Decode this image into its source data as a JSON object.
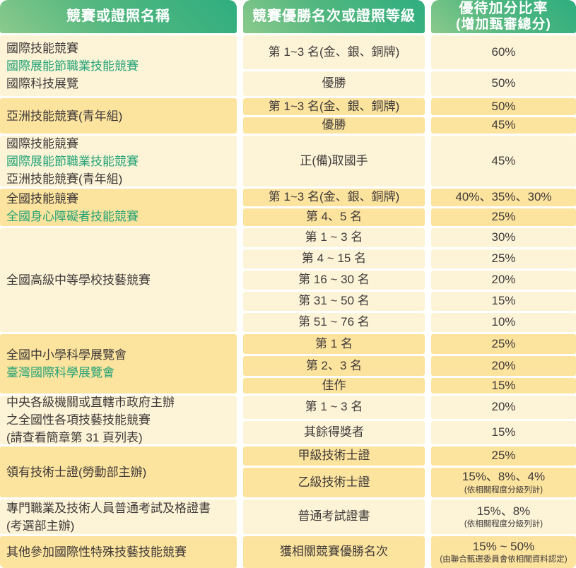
{
  "colors": {
    "header_gradient_dark": "#2fae7f",
    "header_gradient_light": "#8bca8c",
    "row_light": "#fdf4d8",
    "row_dark": "#fce39e",
    "green_text": "#23a377",
    "body_text": "#3f3a39",
    "header_text": "#ffffff"
  },
  "table": {
    "header": {
      "col1": "競賽或證照名稱",
      "col2": "競賽優勝名次或證照等級",
      "col3_line1": "優待加分比率",
      "col3_line2": "(增加甄審總分)"
    },
    "groups": [
      {
        "shade": "light",
        "lines": [
          "國際技能競賽",
          "國際展能節職業技能競賽",
          "國際科技展覽"
        ],
        "green_line_index": 1,
        "rows": [
          {
            "rank": "第 1~3 名(金、銀、銅牌)",
            "rate": "60%"
          },
          {
            "rank": "優勝",
            "rate": "50%"
          }
        ]
      },
      {
        "shade": "dark",
        "lines": [
          "亞洲技能競賽(青年組)"
        ],
        "green_line_index": -1,
        "rows": [
          {
            "rank": "第 1~3 名(金、銀、銅牌)",
            "rate": "50%"
          },
          {
            "rank": "優勝",
            "rate": "45%"
          }
        ]
      },
      {
        "shade": "light",
        "lines": [
          "國際技能競賽",
          "國際展能節職業技能競賽",
          "亞洲技能競賽(青年組)"
        ],
        "green_line_index": 1,
        "rows": [
          {
            "rank": "正(備)取國手",
            "rate": "45%"
          }
        ]
      },
      {
        "shade": "dark",
        "lines": [
          "全國技能競賽",
          "全國身心障礙者技能競賽"
        ],
        "green_line_index": 1,
        "rows": [
          {
            "rank": "第 1~3 名(金、銀、銅牌)",
            "rate": "40%、35%、30%"
          },
          {
            "rank": "第 4、5 名",
            "rate": "25%"
          }
        ]
      },
      {
        "shade": "light",
        "lines": [
          "全國高級中等學校技藝競賽"
        ],
        "green_line_index": -1,
        "rows": [
          {
            "rank": "第 1 ~ 3 名",
            "rate": "30%"
          },
          {
            "rank": "第 4 ~ 15 名",
            "rate": "25%"
          },
          {
            "rank": "第 16 ~ 30 名",
            "rate": "20%"
          },
          {
            "rank": "第 31 ~ 50 名",
            "rate": "15%"
          },
          {
            "rank": "第 51 ~ 76 名",
            "rate": "10%"
          }
        ]
      },
      {
        "shade": "dark",
        "lines": [
          "全國中小學科學展覽會",
          "臺灣國際科學展覽會"
        ],
        "green_line_index": 1,
        "rows": [
          {
            "rank": "第 1 名",
            "rate": "25%"
          },
          {
            "rank": "第 2、3 名",
            "rate": "20%"
          },
          {
            "rank": "佳作",
            "rate": "15%"
          }
        ]
      },
      {
        "shade": "light",
        "lines": [
          "中央各級機關或直轄市政府主辦",
          "之全國性各項技藝技能競賽",
          "(請查看簡章第 31 頁列表)"
        ],
        "green_line_index": -1,
        "rows": [
          {
            "rank": "第 1 ~ 3 名",
            "rate": "20%"
          },
          {
            "rank": "其餘得獎者",
            "rate": "15%"
          }
        ]
      },
      {
        "shade": "dark",
        "lines": [
          "領有技術士證(勞動部主辦)"
        ],
        "green_line_index": -1,
        "rows": [
          {
            "rank": "甲級技術士證",
            "rate": "25%"
          },
          {
            "rank": "乙級技術士證",
            "rate": "15%、8%、4%",
            "note": "(依相關程度分級列計)"
          }
        ]
      },
      {
        "shade": "light",
        "lines": [
          "專門職業及技術人員普通考試及格證書",
          "(考選部主辦)"
        ],
        "green_line_index": -1,
        "rows": [
          {
            "rank": "普通考試證書",
            "rate": "15%、8%",
            "note": "(依相關程度分級列計)"
          }
        ]
      },
      {
        "shade": "dark",
        "lines": [
          "其他參加國際性特殊技藝技能競賽"
        ],
        "green_line_index": -1,
        "rows": [
          {
            "rank": "獲相關競賽優勝名次",
            "rate": "15% ~ 50%",
            "note": "(由聯合甄選委員會依相關資料認定)"
          }
        ]
      }
    ]
  }
}
